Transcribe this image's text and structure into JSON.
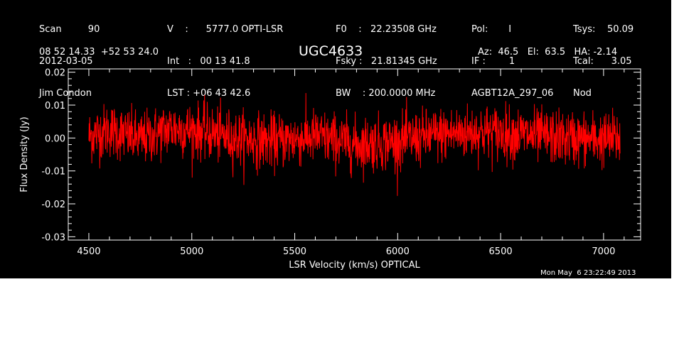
{
  "header": {
    "col1": [
      "Scan         90",
      "2012-03-05",
      "Jim Condon"
    ],
    "col2": [
      "V    :      5777.0 OPTI-LSR",
      "Int   :   00 13 41.8",
      "LST : +06 43 42.6"
    ],
    "col3": [
      "F0    :   22.23508 GHz",
      "Fsky :   21.81345 GHz",
      "BW    : 200.0000 MHz"
    ],
    "col4": [
      "Pol:       I",
      "IF :        1",
      "AGBT12A_297_06"
    ],
    "col5": [
      "Tsys:    50.09",
      "Tcal:      3.05",
      "Nod"
    ],
    "coords": "08 52 14.33  +52 53 24.0",
    "pointing": "Az:  46.5   El:  63.5   HA: -2.14",
    "object": "UGC4633",
    "timestamp": "Mon May  6 23:22:49 2013"
  },
  "colors": {
    "background": "#000000",
    "axes": "#ffffff",
    "series": "#ff0000"
  },
  "chart_data": {
    "type": "line",
    "title": "UGC4633",
    "xlabel": "LSR Velocity (km/s) OPTICAL",
    "ylabel": "Flux Density (Jy)",
    "xlim": [
      4400,
      7180
    ],
    "ylim": [
      -0.031,
      0.021
    ],
    "x_ticks": [
      4500,
      5000,
      5500,
      6000,
      6500,
      7000
    ],
    "x_tick_labels": [
      "4500",
      "5000",
      "5500",
      "6000",
      "6500",
      "7000"
    ],
    "y_ticks": [
      -0.03,
      -0.02,
      -0.01,
      0.0,
      0.01,
      0.02
    ],
    "y_tick_labels": [
      "-0.03",
      "-0.02",
      "-0.01",
      "0.00",
      "0.01",
      "0.02"
    ],
    "grid": false,
    "series": [
      {
        "x_range": [
          4500,
          7080
        ],
        "noise_sigma": 0.0055,
        "value_range": [
          -0.021,
          0.017
        ],
        "envelope": [
          {
            "x": 4500,
            "y": 0.0005
          },
          {
            "x": 4600,
            "y": 0.0025
          },
          {
            "x": 4750,
            "y": -0.0005
          },
          {
            "x": 4900,
            "y": 0.003
          },
          {
            "x": 5050,
            "y": 0.002
          },
          {
            "x": 5200,
            "y": 0.0
          },
          {
            "x": 5400,
            "y": -0.001
          },
          {
            "x": 5600,
            "y": 0.0005
          },
          {
            "x": 5800,
            "y": -0.002
          },
          {
            "x": 6000,
            "y": -0.001
          },
          {
            "x": 6200,
            "y": 0.001
          },
          {
            "x": 6400,
            "y": 0.002
          },
          {
            "x": 6600,
            "y": 0.001
          },
          {
            "x": 6800,
            "y": 0.0
          },
          {
            "x": 7000,
            "y": -0.0005
          },
          {
            "x": 7080,
            "y": 0.0
          }
        ]
      }
    ]
  }
}
